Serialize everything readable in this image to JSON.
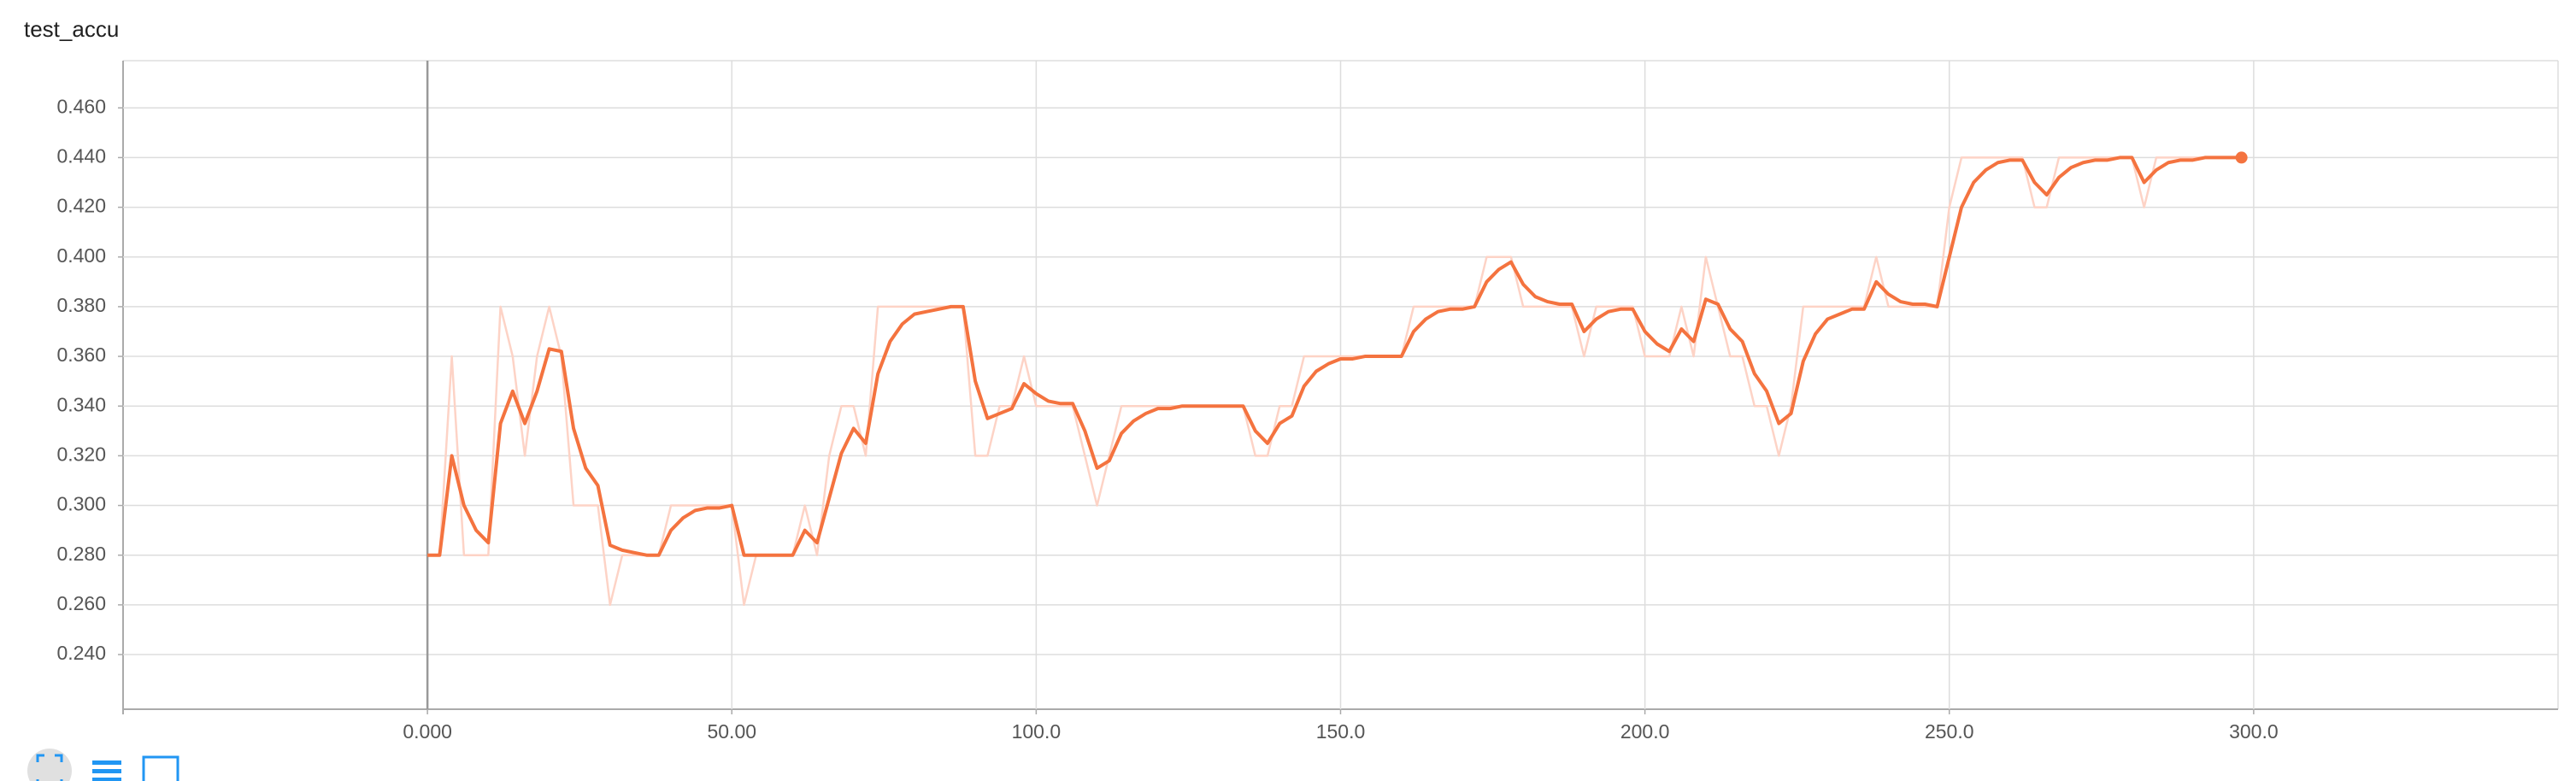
{
  "chart_data": {
    "type": "line",
    "title": "test_accu",
    "x": [
      0,
      2,
      4,
      6,
      8,
      10,
      12,
      14,
      16,
      18,
      20,
      22,
      24,
      26,
      28,
      30,
      32,
      34,
      36,
      38,
      40,
      42,
      44,
      46,
      48,
      50,
      52,
      54,
      56,
      58,
      60,
      62,
      64,
      66,
      68,
      70,
      72,
      74,
      76,
      78,
      80,
      82,
      84,
      86,
      88,
      90,
      92,
      94,
      96,
      98,
      100,
      102,
      104,
      106,
      108,
      110,
      112,
      114,
      116,
      118,
      120,
      122,
      124,
      126,
      128,
      130,
      132,
      134,
      136,
      138,
      140,
      142,
      144,
      146,
      148,
      150,
      152,
      154,
      156,
      158,
      160,
      162,
      164,
      166,
      168,
      170,
      172,
      174,
      176,
      178,
      180,
      182,
      184,
      186,
      188,
      190,
      192,
      194,
      196,
      198,
      200,
      202,
      204,
      206,
      208,
      210,
      212,
      214,
      216,
      218,
      220,
      222,
      224,
      226,
      228,
      230,
      232,
      234,
      236,
      238,
      240,
      242,
      244,
      246,
      248,
      250,
      252,
      254,
      256,
      258,
      260,
      262,
      264,
      266,
      268,
      270,
      272,
      274,
      276,
      278,
      280,
      282,
      284,
      286,
      288,
      290,
      292,
      294,
      296,
      298
    ],
    "series": [
      {
        "color": "#fdd3c6",
        "values": [
          0.28,
          0.28,
          0.36,
          0.28,
          0.28,
          0.28,
          0.38,
          0.36,
          0.32,
          0.36,
          0.38,
          0.36,
          0.3,
          0.3,
          0.3,
          0.26,
          0.28,
          0.28,
          0.28,
          0.28,
          0.3,
          0.3,
          0.3,
          0.3,
          0.3,
          0.3,
          0.26,
          0.28,
          0.28,
          0.28,
          0.28,
          0.3,
          0.28,
          0.32,
          0.34,
          0.34,
          0.32,
          0.38,
          0.38,
          0.38,
          0.38,
          0.38,
          0.38,
          0.38,
          0.38,
          0.32,
          0.32,
          0.34,
          0.34,
          0.36,
          0.34,
          0.34,
          0.34,
          0.34,
          0.32,
          0.3,
          0.32,
          0.34,
          0.34,
          0.34,
          0.34,
          0.34,
          0.34,
          0.34,
          0.34,
          0.34,
          0.34,
          0.34,
          0.32,
          0.32,
          0.34,
          0.34,
          0.36,
          0.36,
          0.36,
          0.36,
          0.36,
          0.36,
          0.36,
          0.36,
          0.36,
          0.38,
          0.38,
          0.38,
          0.38,
          0.38,
          0.38,
          0.4,
          0.4,
          0.4,
          0.38,
          0.38,
          0.38,
          0.38,
          0.38,
          0.36,
          0.38,
          0.38,
          0.38,
          0.38,
          0.36,
          0.36,
          0.36,
          0.38,
          0.36,
          0.4,
          0.38,
          0.36,
          0.36,
          0.34,
          0.34,
          0.32,
          0.34,
          0.38,
          0.38,
          0.38,
          0.38,
          0.38,
          0.38,
          0.4,
          0.38,
          0.38,
          0.38,
          0.38,
          0.38,
          0.42,
          0.44,
          0.44,
          0.44,
          0.44,
          0.44,
          0.44,
          0.42,
          0.42,
          0.44,
          0.44,
          0.44,
          0.44,
          0.44,
          0.44,
          0.44,
          0.42,
          0.44,
          0.44,
          0.44,
          0.44,
          0.44,
          0.44,
          0.44,
          0.44
        ]
      },
      {
        "color": "#f4733f",
        "values": [
          0.28,
          0.28,
          0.32,
          0.3,
          0.29,
          0.285,
          0.333,
          0.346,
          0.333,
          0.346,
          0.363,
          0.362,
          0.331,
          0.315,
          0.308,
          0.284,
          0.282,
          0.281,
          0.28,
          0.28,
          0.29,
          0.295,
          0.298,
          0.299,
          0.299,
          0.3,
          0.28,
          0.28,
          0.28,
          0.28,
          0.28,
          0.29,
          0.285,
          0.303,
          0.321,
          0.331,
          0.325,
          0.353,
          0.366,
          0.373,
          0.377,
          0.378,
          0.379,
          0.38,
          0.38,
          0.35,
          0.335,
          0.337,
          0.339,
          0.349,
          0.345,
          0.342,
          0.341,
          0.341,
          0.33,
          0.315,
          0.318,
          0.329,
          0.334,
          0.337,
          0.339,
          0.339,
          0.34,
          0.34,
          0.34,
          0.34,
          0.34,
          0.34,
          0.33,
          0.325,
          0.333,
          0.336,
          0.348,
          0.354,
          0.357,
          0.359,
          0.359,
          0.36,
          0.36,
          0.36,
          0.36,
          0.37,
          0.375,
          0.378,
          0.379,
          0.379,
          0.38,
          0.39,
          0.395,
          0.398,
          0.389,
          0.384,
          0.382,
          0.381,
          0.381,
          0.37,
          0.375,
          0.378,
          0.379,
          0.379,
          0.37,
          0.365,
          0.362,
          0.371,
          0.366,
          0.383,
          0.381,
          0.371,
          0.366,
          0.353,
          0.346,
          0.333,
          0.337,
          0.358,
          0.369,
          0.375,
          0.377,
          0.379,
          0.379,
          0.39,
          0.385,
          0.382,
          0.381,
          0.381,
          0.38,
          0.4,
          0.42,
          0.43,
          0.435,
          0.438,
          0.439,
          0.439,
          0.43,
          0.425,
          0.432,
          0.436,
          0.438,
          0.439,
          0.439,
          0.44,
          0.44,
          0.43,
          0.435,
          0.438,
          0.439,
          0.439,
          0.44,
          0.44,
          0.44,
          0.44
        ],
        "end_marker": true
      }
    ],
    "xlim": [
      -50,
      350
    ],
    "ylim": [
      0.218,
      0.479
    ],
    "xticks": [
      {
        "value": 0,
        "label": "0.000"
      },
      {
        "value": 50,
        "label": "50.00"
      },
      {
        "value": 100,
        "label": "100.0"
      },
      {
        "value": 150,
        "label": "150.0"
      },
      {
        "value": 200,
        "label": "200.0"
      },
      {
        "value": 250,
        "label": "250.0"
      },
      {
        "value": 300,
        "label": "300.0"
      }
    ],
    "yticks": [
      {
        "value": 0.24,
        "label": "0.240"
      },
      {
        "value": 0.26,
        "label": "0.260"
      },
      {
        "value": 0.28,
        "label": "0.280"
      },
      {
        "value": 0.3,
        "label": "0.300"
      },
      {
        "value": 0.32,
        "label": "0.320"
      },
      {
        "value": 0.34,
        "label": "0.340"
      },
      {
        "value": 0.36,
        "label": "0.360"
      },
      {
        "value": 0.38,
        "label": "0.380"
      },
      {
        "value": 0.4,
        "label": "0.400"
      },
      {
        "value": 0.42,
        "label": "0.420"
      },
      {
        "value": 0.44,
        "label": "0.440"
      },
      {
        "value": 0.46,
        "label": "0.460"
      }
    ],
    "grid": true
  }
}
